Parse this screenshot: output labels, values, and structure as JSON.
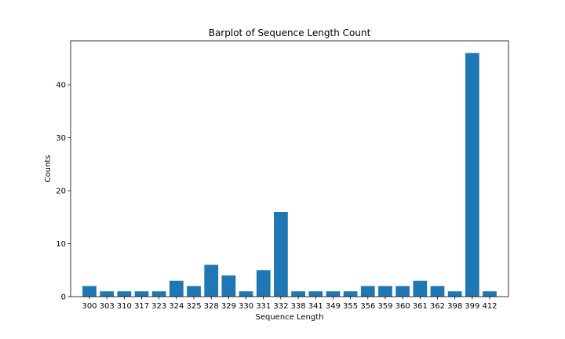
{
  "chart_data": {
    "type": "bar",
    "title": "Barplot of Sequence Length Count",
    "xlabel": "Sequence Length",
    "ylabel": "Counts",
    "categories": [
      "300",
      "303",
      "310",
      "317",
      "323",
      "324",
      "325",
      "328",
      "329",
      "330",
      "331",
      "332",
      "338",
      "341",
      "349",
      "355",
      "356",
      "359",
      "360",
      "361",
      "362",
      "398",
      "399",
      "412"
    ],
    "values": [
      2,
      1,
      1,
      1,
      1,
      3,
      2,
      6,
      4,
      1,
      5,
      16,
      1,
      1,
      1,
      1,
      2,
      2,
      2,
      3,
      2,
      1,
      46,
      1
    ],
    "ylim": [
      0,
      48.3
    ],
    "yticks": [
      0,
      10,
      20,
      30,
      40
    ],
    "bar_color": "#1f77b4",
    "grid": false,
    "legend": "none"
  }
}
